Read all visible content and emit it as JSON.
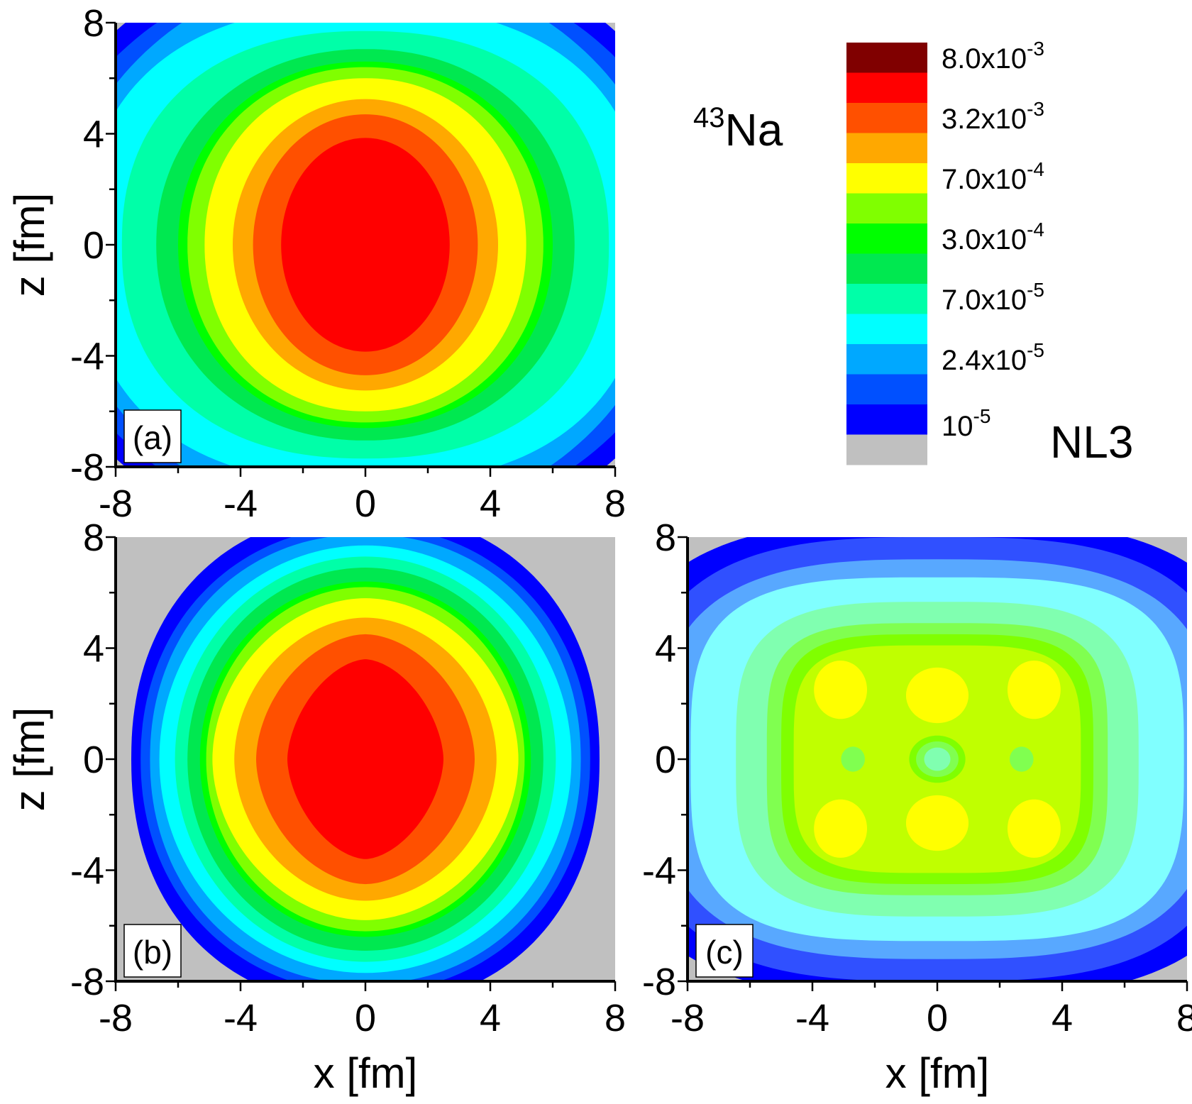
{
  "chart_data": {
    "type": "heatmap",
    "subtype": "filled-contour",
    "nucleus": {
      "mass_number": "43",
      "element": "Na"
    },
    "model": "NL3",
    "colorbar": {
      "colors_top_to_bottom": [
        "#800000",
        "#ff0000",
        "#ff5000",
        "#ffa800",
        "#ffff00",
        "#80ff00",
        "#00ff00",
        "#00e850",
        "#00ffa8",
        "#00ffff",
        "#00a8ff",
        "#0050ff",
        "#0000ff",
        "#c0c0c0"
      ],
      "labels": [
        {
          "base": "8.0x10",
          "exp": "-3",
          "value": 0.008
        },
        {
          "base": "3.2x10",
          "exp": "-3",
          "value": 0.0032
        },
        {
          "base": "7.0x10",
          "exp": "-4",
          "value": 0.0007
        },
        {
          "base": "3.0x10",
          "exp": "-4",
          "value": 0.0003
        },
        {
          "base": "7.0x10",
          "exp": "-5",
          "value": 7e-05
        },
        {
          "base": "2.4x10",
          "exp": "-5",
          "value": 2.4e-05
        },
        {
          "base": "10",
          "exp": "-5",
          "value": 1e-05
        }
      ]
    },
    "xlim": [
      -8,
      8
    ],
    "ylim": [
      -8,
      8
    ],
    "x_ticks": [
      "-8",
      "-4",
      "0",
      "4",
      "8"
    ],
    "y_ticks": [
      "8",
      "4",
      "0",
      "-4",
      "-8"
    ],
    "panels": [
      {
        "label": "(a)",
        "xlabel": "",
        "ylabel": "z [fm]",
        "background": "#c0c0c0",
        "contours_outer_to_inner": [
          {
            "color": "#0000ff",
            "a": 11.2,
            "b": 11.0,
            "p": 2
          },
          {
            "color": "#0050ff",
            "a": 10.6,
            "b": 10.3,
            "p": 2
          },
          {
            "color": "#00a8ff",
            "a": 9.8,
            "b": 10.0,
            "p": 2
          },
          {
            "color": "#00ffff",
            "a": 9.0,
            "b": 8.6,
            "p": 2.4
          },
          {
            "color": "#00ffa8",
            "a": 7.8,
            "b": 7.7,
            "p": 2.3
          },
          {
            "color": "#00e850",
            "a": 6.7,
            "b": 7.05,
            "p": 2.1
          },
          {
            "color": "#00ff00",
            "a": 6.0,
            "b": 6.6,
            "p": 2.1
          },
          {
            "color": "#80ff00",
            "a": 5.7,
            "b": 6.4,
            "p": 2.1
          },
          {
            "color": "#ffff00",
            "a": 5.15,
            "b": 6.0,
            "p": 2.1
          },
          {
            "color": "#ffa800",
            "a": 4.25,
            "b": 5.25,
            "p": 2
          },
          {
            "color": "#ff5000",
            "a": 3.6,
            "b": 4.7,
            "p": 2
          },
          {
            "color": "#ff0000",
            "a": 2.7,
            "b": 3.85,
            "p": 2
          }
        ]
      },
      {
        "label": "(b)",
        "xlabel": "x [fm]",
        "ylabel": "z [fm]",
        "background": "#c0c0c0",
        "contours_outer_to_inner": [
          {
            "color": "#0000ff",
            "a": 7.5,
            "b": 8.9,
            "p": 2.2
          },
          {
            "color": "#0050ff",
            "a": 7.2,
            "b": 8.4,
            "p": 2.1
          },
          {
            "color": "#00a8ff",
            "a": 6.9,
            "b": 8.1,
            "p": 2.1
          },
          {
            "color": "#00ffff",
            "a": 6.6,
            "b": 7.7,
            "p": 2
          },
          {
            "color": "#00ffa8",
            "a": 6.1,
            "b": 7.3,
            "p": 2
          },
          {
            "color": "#00e850",
            "a": 5.7,
            "b": 6.9,
            "p": 2
          },
          {
            "color": "#00ff00",
            "a": 5.3,
            "b": 6.4,
            "p": 2
          },
          {
            "color": "#80ff00",
            "a": 5.1,
            "b": 6.2,
            "p": 2
          },
          {
            "color": "#ffff00",
            "a": 4.9,
            "b": 5.8,
            "p": 1.9
          },
          {
            "color": "#ffa800",
            "a": 4.2,
            "b": 5.1,
            "p": 1.9
          },
          {
            "color": "#ff5000",
            "a": 3.5,
            "b": 4.5,
            "p": 1.8
          },
          {
            "color": "#ff0000",
            "a": 2.5,
            "b": 3.6,
            "p": 1.7
          }
        ]
      },
      {
        "label": "(c)",
        "xlabel": "x [fm]",
        "ylabel": "",
        "background": "#c0c0c0",
        "contours_outer_to_inner": [
          {
            "color": "#0000ff",
            "a": 10.5,
            "b": 8.6,
            "p": 3
          },
          {
            "color": "#3050ff",
            "a": 9.6,
            "b": 8.0,
            "p": 3
          },
          {
            "color": "#58a8ff",
            "a": 8.9,
            "b": 7.2,
            "p": 3
          },
          {
            "color": "#80ffff",
            "a": 7.9,
            "b": 6.55,
            "p": 3.5
          },
          {
            "color": "#80ffb0",
            "a": 6.45,
            "b": 5.67,
            "p": 3.5
          },
          {
            "color": "#80ff50",
            "a": 5.46,
            "b": 4.9,
            "p": 4
          },
          {
            "color": "#80ff00",
            "a": 5.0,
            "b": 4.5,
            "p": 4
          },
          {
            "color": "#c0ff00",
            "a": 4.6,
            "b": 4.1,
            "p": 4
          }
        ],
        "blobs": [
          {
            "color": "#ffff00",
            "x": -3.1,
            "z": 2.5,
            "a": 0.85,
            "b": 1.05
          },
          {
            "color": "#ffff00",
            "x": 0,
            "z": 2.3,
            "a": 1.0,
            "b": 1.0
          },
          {
            "color": "#ffff00",
            "x": 3.1,
            "z": 2.5,
            "a": 0.85,
            "b": 1.05
          },
          {
            "color": "#ffff00",
            "x": -3.1,
            "z": -2.5,
            "a": 0.85,
            "b": 1.05
          },
          {
            "color": "#ffff00",
            "x": 0,
            "z": -2.3,
            "a": 1.0,
            "b": 1.0
          },
          {
            "color": "#ffff00",
            "x": 3.1,
            "z": -2.5,
            "a": 0.85,
            "b": 1.05
          },
          {
            "color": "#80ff50",
            "x": -2.7,
            "z": 0,
            "a": 0.38,
            "b": 0.45
          },
          {
            "color": "#80ff50",
            "x": 2.7,
            "z": 0,
            "a": 0.38,
            "b": 0.45
          },
          {
            "color": "#80ff00",
            "x": 0,
            "z": 0,
            "a": 0.9,
            "b": 0.85
          },
          {
            "color": "#80ff50",
            "x": 0,
            "z": 0,
            "a": 0.68,
            "b": 0.64
          },
          {
            "color": "#80ffb0",
            "x": 0,
            "z": 0,
            "a": 0.42,
            "b": 0.42
          }
        ]
      }
    ]
  }
}
